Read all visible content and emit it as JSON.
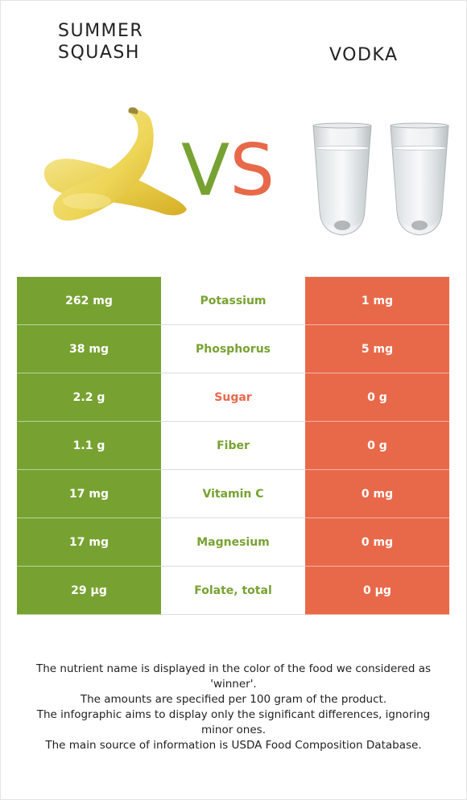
{
  "left_food": {
    "name": "Summer squash",
    "color": "#77a232"
  },
  "right_food": {
    "name": "Vodka",
    "color": "#e8694a"
  },
  "vs": {
    "v": "V",
    "s": "S"
  },
  "rows": [
    {
      "left": "262 mg",
      "nutrient": "Potassium",
      "right": "1 mg",
      "winner": "left"
    },
    {
      "left": "38 mg",
      "nutrient": "Phosphorus",
      "right": "5 mg",
      "winner": "left"
    },
    {
      "left": "2.2 g",
      "nutrient": "Sugar",
      "right": "0 g",
      "winner": "right"
    },
    {
      "left": "1.1 g",
      "nutrient": "Fiber",
      "right": "0 g",
      "winner": "left"
    },
    {
      "left": "17 mg",
      "nutrient": "Vitamin C",
      "right": "0 mg",
      "winner": "left"
    },
    {
      "left": "17 mg",
      "nutrient": "Magnesium",
      "right": "0 mg",
      "winner": "left"
    },
    {
      "left": "29 µg",
      "nutrient": "Folate, total",
      "right": "0 µg",
      "winner": "left"
    }
  ],
  "notes": [
    "The nutrient name is displayed in the color of the food we considered as 'winner'.",
    "The amounts are specified per 100 gram of the product.",
    "The infographic aims to display only the significant differences, ignoring minor ones.",
    "The main source of information is USDA Food Composition Database."
  ]
}
